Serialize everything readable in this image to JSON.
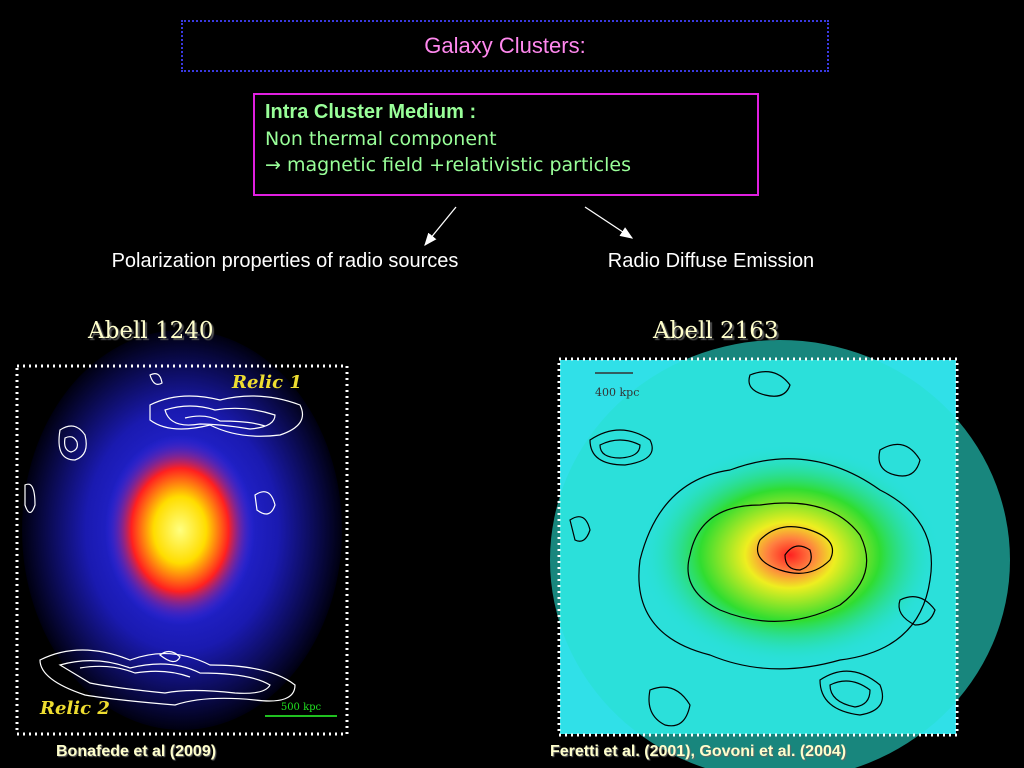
{
  "header": {
    "title": "Galaxy Clusters:"
  },
  "concept_box": {
    "lines": [
      "Intra Cluster Medium :",
      "Non thermal component",
      "→ magnetic field +relativistic particles"
    ]
  },
  "branches": [
    "Polarization properties of radio sources",
    "Radio Diffuse Emission"
  ],
  "panels": [
    {
      "name": "Abell 1240",
      "labels": [
        "Relic 1",
        "Relic 2"
      ],
      "scale": "500 kpc",
      "caption": "Bonafede et al (2009)"
    },
    {
      "name": "Abell 2163",
      "scale": "400 kpc",
      "caption": "Feretti et al. (2001), Govoni et al. (2004)"
    }
  ]
}
